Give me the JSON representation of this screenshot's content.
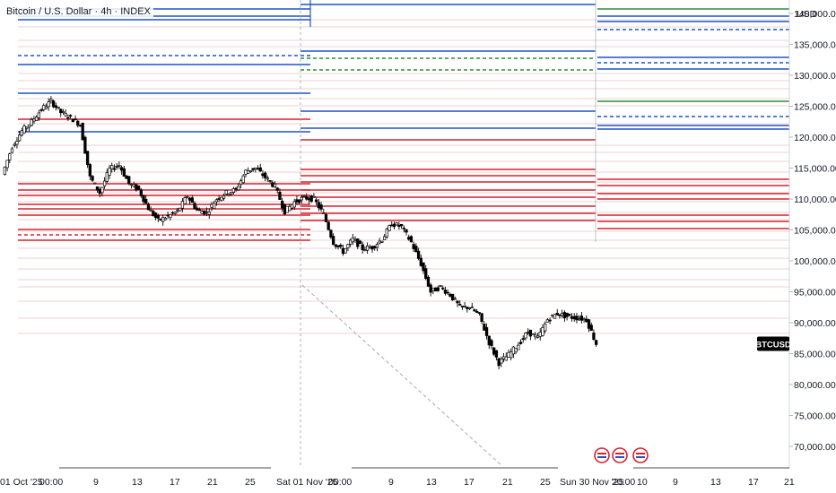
{
  "header": {
    "symbol": "Bitcoin",
    "quote": "U.S. Dollar",
    "interval": "4h",
    "exchange": "INDEX",
    "separator": "·",
    "slash": "/"
  },
  "colors": {
    "bull": "#ffffff",
    "bear": "#000000",
    "blue_level": "#1e53c8",
    "red_level": "#d5222e",
    "green_level": "#2e8b3a",
    "grid": "#e0e3eb",
    "price_tag_bg": "#000000"
  },
  "chart_data": {
    "type": "candlestick",
    "currency": "USD",
    "y_ticks": [
      "140,000.00",
      "135,000.00",
      "130,000.00",
      "125,000.00",
      "120,000.00",
      "115,000.00",
      "110,000.00",
      "105,000.00",
      "100,000.00",
      "95,000.00",
      "90,000.00",
      "85,000.00",
      "80,000.00",
      "75,000.00",
      "70,000.00"
    ],
    "y_tick_values": [
      140000,
      135000,
      130000,
      125000,
      120000,
      115000,
      110000,
      105000,
      100000,
      95000,
      90000,
      85000,
      80000,
      75000,
      70000
    ],
    "ylim": [
      70000,
      143500
    ],
    "x_tick_labels": [
      "01 Oct '25",
      "00:00",
      "9",
      "13",
      "17",
      "21",
      "25",
      "Sat 01 Nov '25",
      "00:00",
      "9",
      "13",
      "17",
      "21",
      "25",
      "Sun 30 Nov '25",
      "20:00",
      "10",
      "9",
      "13",
      "17",
      "21"
    ],
    "last_price_label": "BTCUSD",
    "last_price": 86600,
    "price_path": [
      [
        "2025-10-01",
        114000
      ],
      [
        "2025-10-02",
        118500
      ],
      [
        "2025-10-03",
        121000
      ],
      [
        "2025-10-04",
        122500
      ],
      [
        "2025-10-05",
        124500
      ],
      [
        "2025-10-06",
        125800
      ],
      [
        "2025-10-07",
        124000
      ],
      [
        "2025-10-08",
        123200
      ],
      [
        "2025-10-09",
        122000
      ],
      [
        "2025-10-10",
        113500
      ],
      [
        "2025-10-11",
        111000
      ],
      [
        "2025-10-12",
        114800
      ],
      [
        "2025-10-13",
        115500
      ],
      [
        "2025-10-14",
        112500
      ],
      [
        "2025-10-15",
        111500
      ],
      [
        "2025-10-16",
        108500
      ],
      [
        "2025-10-17",
        106500
      ],
      [
        "2025-10-18",
        107200
      ],
      [
        "2025-10-19",
        108000
      ],
      [
        "2025-10-20",
        110500
      ],
      [
        "2025-10-21",
        108200
      ],
      [
        "2025-10-22",
        107800
      ],
      [
        "2025-10-23",
        110000
      ],
      [
        "2025-10-24",
        111000
      ],
      [
        "2025-10-25",
        111500
      ],
      [
        "2025-10-26",
        114500
      ],
      [
        "2025-10-27",
        115000
      ],
      [
        "2025-10-28",
        113500
      ],
      [
        "2025-10-29",
        112000
      ],
      [
        "2025-10-30",
        108000
      ],
      [
        "2025-10-31",
        109500
      ],
      [
        "2025-11-01",
        110200
      ],
      [
        "2025-11-02",
        110000
      ],
      [
        "2025-11-03",
        107500
      ],
      [
        "2025-11-04",
        103000
      ],
      [
        "2025-11-05",
        101500
      ],
      [
        "2025-11-06",
        103500
      ],
      [
        "2025-11-07",
        102000
      ],
      [
        "2025-11-08",
        102200
      ],
      [
        "2025-11-09",
        103500
      ],
      [
        "2025-11-10",
        106000
      ],
      [
        "2025-11-11",
        105500
      ],
      [
        "2025-11-12",
        103000
      ],
      [
        "2025-11-13",
        99500
      ],
      [
        "2025-11-14",
        95000
      ],
      [
        "2025-11-15",
        95800
      ],
      [
        "2025-11-16",
        94500
      ],
      [
        "2025-11-17",
        92500
      ],
      [
        "2025-11-18",
        92500
      ],
      [
        "2025-11-19",
        91200
      ],
      [
        "2025-11-20",
        86800
      ],
      [
        "2025-11-21",
        83500
      ],
      [
        "2025-11-22",
        84800
      ],
      [
        "2025-11-23",
        86500
      ],
      [
        "2025-11-24",
        88500
      ],
      [
        "2025-11-25",
        87500
      ],
      [
        "2025-11-26",
        90500
      ],
      [
        "2025-11-27",
        91500
      ],
      [
        "2025-11-28",
        91000
      ],
      [
        "2025-11-29",
        90800
      ],
      [
        "2025-11-30",
        90500
      ],
      [
        "2025-12-01",
        86600
      ]
    ]
  }
}
